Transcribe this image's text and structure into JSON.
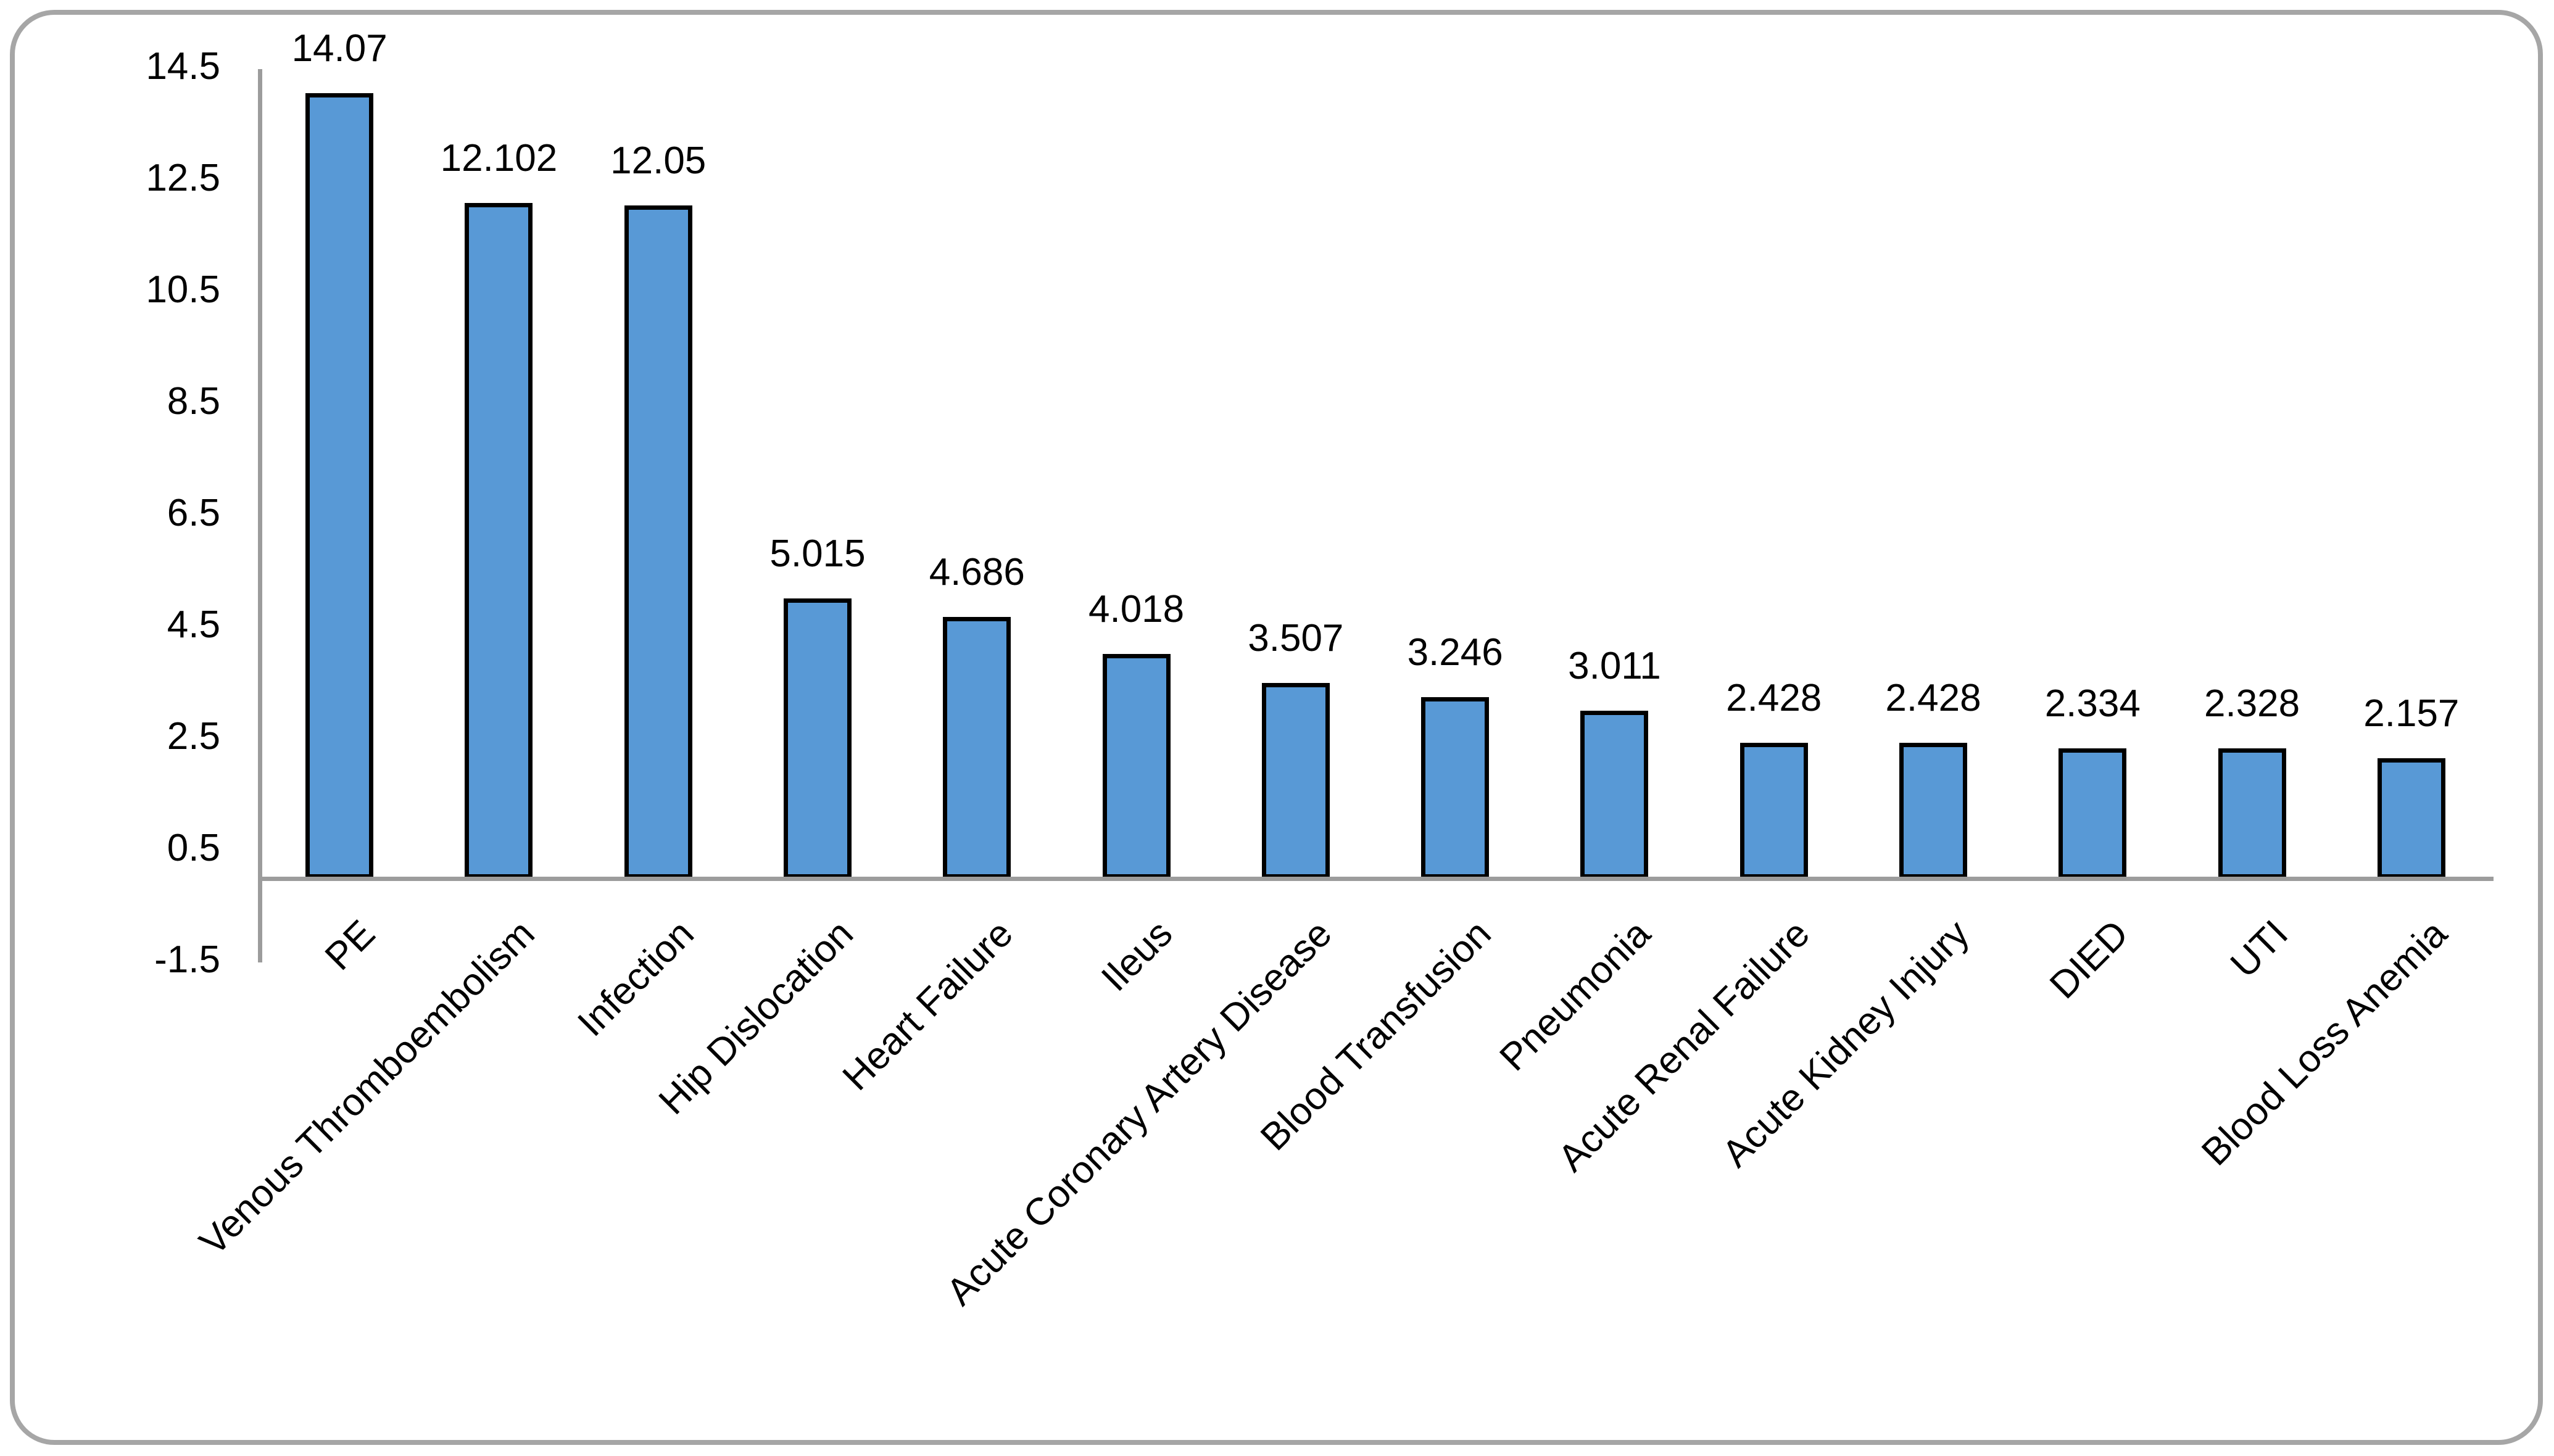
{
  "chart_data": {
    "type": "bar",
    "title": "",
    "xlabel": "",
    "ylabel": "",
    "categories": [
      "PE",
      "Venous Thromboembolism",
      "Infection",
      "Hip Dislocation",
      "Heart Failure",
      "Ileus",
      "Acute Coronary Artery Disease",
      "Blood Transfusion",
      "Pneumonia",
      "Acute Renal Failure",
      "Acute Kidney Injury",
      "DIED",
      "UTI",
      "Blood Loss Anemia"
    ],
    "values": [
      14.07,
      12.102,
      12.05,
      5.015,
      4.686,
      4.018,
      3.507,
      3.246,
      3.011,
      2.428,
      2.428,
      2.334,
      2.328,
      2.157
    ],
    "data_labels": [
      "14.07",
      "12.102",
      "12.05",
      "5.015",
      "4.686",
      "4.018",
      "3.507",
      "3.246",
      "3.011",
      "2.428",
      "2.428",
      "2.334",
      "2.328",
      "2.157"
    ],
    "y_axis": {
      "min": -1.5,
      "max": 14.5,
      "step": 2,
      "tick_labels": [
        "14.5",
        "12.5",
        "10.5",
        "8.5",
        "6.5",
        "4.5",
        "2.5",
        "0.5",
        "-1.5"
      ],
      "tick_values": [
        14.5,
        12.5,
        10.5,
        8.5,
        6.5,
        4.5,
        2.5,
        0.5,
        -1.5
      ],
      "bars_baseline_value": 0
    },
    "layout_hints": {
      "grid": false,
      "legend": "none",
      "category_label_rotation_deg": -45,
      "value_label_position": "above-bar"
    },
    "colors": {
      "bar_fill": "#5899D6",
      "bar_border": "#000000",
      "axis_line": "#9C9C9C",
      "frame_border": "#A6A6A6",
      "background": "#FFFFFF",
      "text": "#000000"
    }
  }
}
